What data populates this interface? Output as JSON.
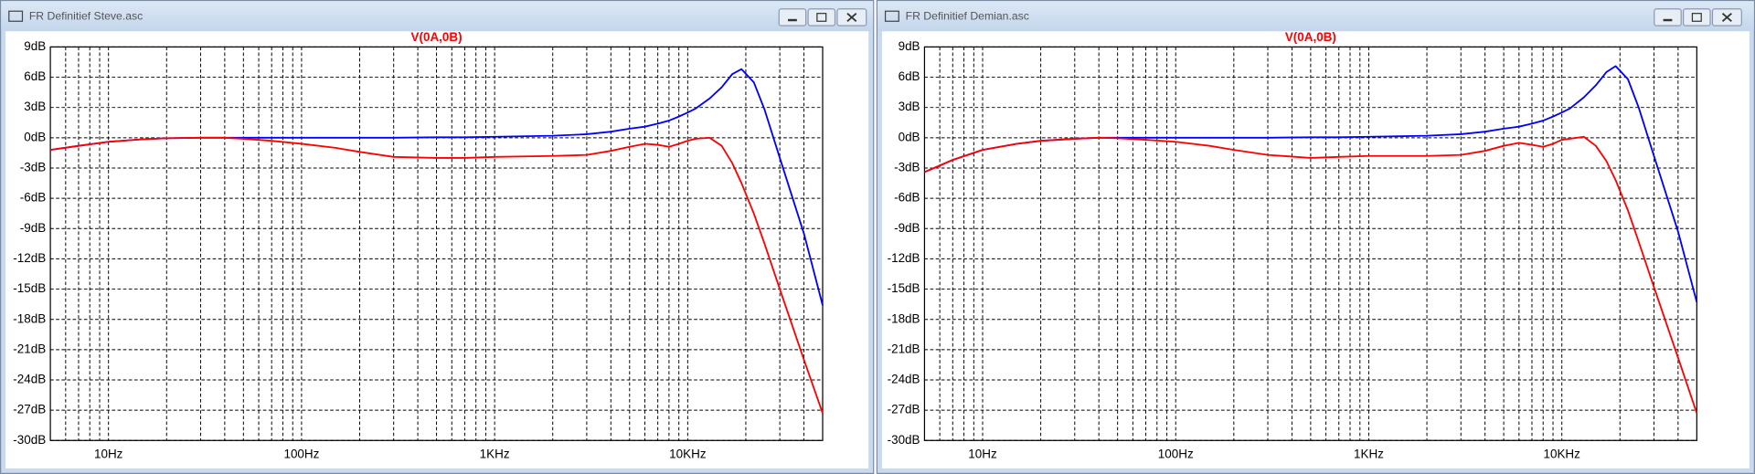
{
  "windows": [
    {
      "title": "FR Definitief Steve.asc"
    },
    {
      "title": "FR Definitief Demian.asc"
    }
  ],
  "chart_data": [
    {
      "type": "line",
      "title": "V(0A,0B)",
      "title_color": "#ff0000",
      "log_x": true,
      "grid": true,
      "minor_grid": true,
      "x": [
        5,
        7,
        10,
        15,
        20,
        30,
        40,
        50,
        70,
        100,
        150,
        200,
        300,
        500,
        700,
        1000,
        2000,
        3000,
        4000,
        5000,
        6000,
        7000,
        8000,
        9000,
        10000,
        11000,
        13000,
        15000,
        17000,
        19000,
        22000,
        25000,
        30000,
        40000,
        50000
      ],
      "series": [
        {
          "color": "#0000ff",
          "values": [
            -1.2,
            -0.8,
            -0.4,
            -0.15,
            -0.05,
            0,
            0,
            0,
            0,
            0,
            0,
            0,
            0,
            0.05,
            0.05,
            0.1,
            0.2,
            0.35,
            0.6,
            0.9,
            1.1,
            1.4,
            1.7,
            2.1,
            2.5,
            2.9,
            3.9,
            5.0,
            6.3,
            6.8,
            5.5,
            2.8,
            -2,
            -9.5,
            -16.6
          ]
        },
        {
          "color": "#ff0000",
          "values": [
            -1.2,
            -0.8,
            -0.4,
            -0.15,
            -0.05,
            0,
            0,
            -0.1,
            -0.3,
            -0.6,
            -1.0,
            -1.4,
            -1.9,
            -2.0,
            -2.0,
            -1.9,
            -1.8,
            -1.7,
            -1.3,
            -0.9,
            -0.6,
            -0.7,
            -0.9,
            -0.6,
            -0.3,
            -0.1,
            0,
            -0.8,
            -2.5,
            -4.5,
            -7.5,
            -10.5,
            -15,
            -22,
            -27.3
          ]
        }
      ],
      "xlim": [
        5,
        50000
      ],
      "xticks": [
        {
          "value": 10,
          "label": "10Hz"
        },
        {
          "value": 100,
          "label": "100Hz"
        },
        {
          "value": 1000,
          "label": "1KHz"
        },
        {
          "value": 10000,
          "label": "10KHz"
        }
      ],
      "ylim": [
        -30,
        9
      ],
      "yticks": [
        {
          "value": 9,
          "label": "9dB"
        },
        {
          "value": 6,
          "label": "6dB"
        },
        {
          "value": 3,
          "label": "3dB"
        },
        {
          "value": 0,
          "label": "0dB"
        },
        {
          "value": -3,
          "label": "-3dB"
        },
        {
          "value": -6,
          "label": "-6dB"
        },
        {
          "value": -9,
          "label": "-9dB"
        },
        {
          "value": -12,
          "label": "-12dB"
        },
        {
          "value": -15,
          "label": "-15dB"
        },
        {
          "value": -18,
          "label": "-18dB"
        },
        {
          "value": -21,
          "label": "-21dB"
        },
        {
          "value": -24,
          "label": "-24dB"
        },
        {
          "value": -27,
          "label": "-27dB"
        },
        {
          "value": -30,
          "label": "-30dB"
        }
      ]
    },
    {
      "type": "line",
      "title": "V(0A,0B)",
      "title_color": "#ff0000",
      "log_x": true,
      "grid": true,
      "minor_grid": true,
      "x": [
        5,
        7,
        10,
        15,
        20,
        30,
        40,
        50,
        70,
        100,
        150,
        200,
        300,
        500,
        700,
        1000,
        2000,
        3000,
        4000,
        5000,
        6000,
        7000,
        8000,
        9000,
        10000,
        11000,
        13000,
        15000,
        17000,
        19000,
        22000,
        25000,
        30000,
        40000,
        50000
      ],
      "series": [
        {
          "color": "#0000ff",
          "values": [
            -3.4,
            -2.2,
            -1.2,
            -0.6,
            -0.3,
            -0.1,
            0,
            0,
            0,
            0,
            0,
            0,
            0,
            0.05,
            0.05,
            0.1,
            0.2,
            0.35,
            0.6,
            0.9,
            1.1,
            1.4,
            1.7,
            2.1,
            2.5,
            2.9,
            4.0,
            5.2,
            6.5,
            7.1,
            5.8,
            3.0,
            -1.8,
            -9.3,
            -16.3
          ]
        },
        {
          "color": "#ff0000",
          "values": [
            -3.4,
            -2.2,
            -1.2,
            -0.6,
            -0.3,
            -0.1,
            0,
            -0.05,
            -0.2,
            -0.4,
            -0.8,
            -1.2,
            -1.7,
            -2.0,
            -1.9,
            -1.8,
            -1.8,
            -1.7,
            -1.3,
            -0.8,
            -0.5,
            -0.7,
            -0.9,
            -0.6,
            -0.2,
            -0.1,
            0.1,
            -0.8,
            -2.3,
            -4.2,
            -7.2,
            -10.3,
            -14.8,
            -21.8,
            -27.3
          ]
        }
      ],
      "xlim": [
        5,
        50000
      ],
      "xticks": [
        {
          "value": 10,
          "label": "10Hz"
        },
        {
          "value": 100,
          "label": "100Hz"
        },
        {
          "value": 1000,
          "label": "1KHz"
        },
        {
          "value": 10000,
          "label": "10KHz"
        }
      ],
      "ylim": [
        -30,
        9
      ],
      "yticks": [
        {
          "value": 9,
          "label": "9dB"
        },
        {
          "value": 6,
          "label": "6dB"
        },
        {
          "value": 3,
          "label": "3dB"
        },
        {
          "value": 0,
          "label": "0dB"
        },
        {
          "value": -3,
          "label": "-3dB"
        },
        {
          "value": -6,
          "label": "-6dB"
        },
        {
          "value": -9,
          "label": "-9dB"
        },
        {
          "value": -12,
          "label": "-12dB"
        },
        {
          "value": -15,
          "label": "-15dB"
        },
        {
          "value": -18,
          "label": "-18dB"
        },
        {
          "value": -21,
          "label": "-21dB"
        },
        {
          "value": -24,
          "label": "-24dB"
        },
        {
          "value": -27,
          "label": "-27dB"
        },
        {
          "value": -30,
          "label": "-30dB"
        }
      ]
    }
  ]
}
